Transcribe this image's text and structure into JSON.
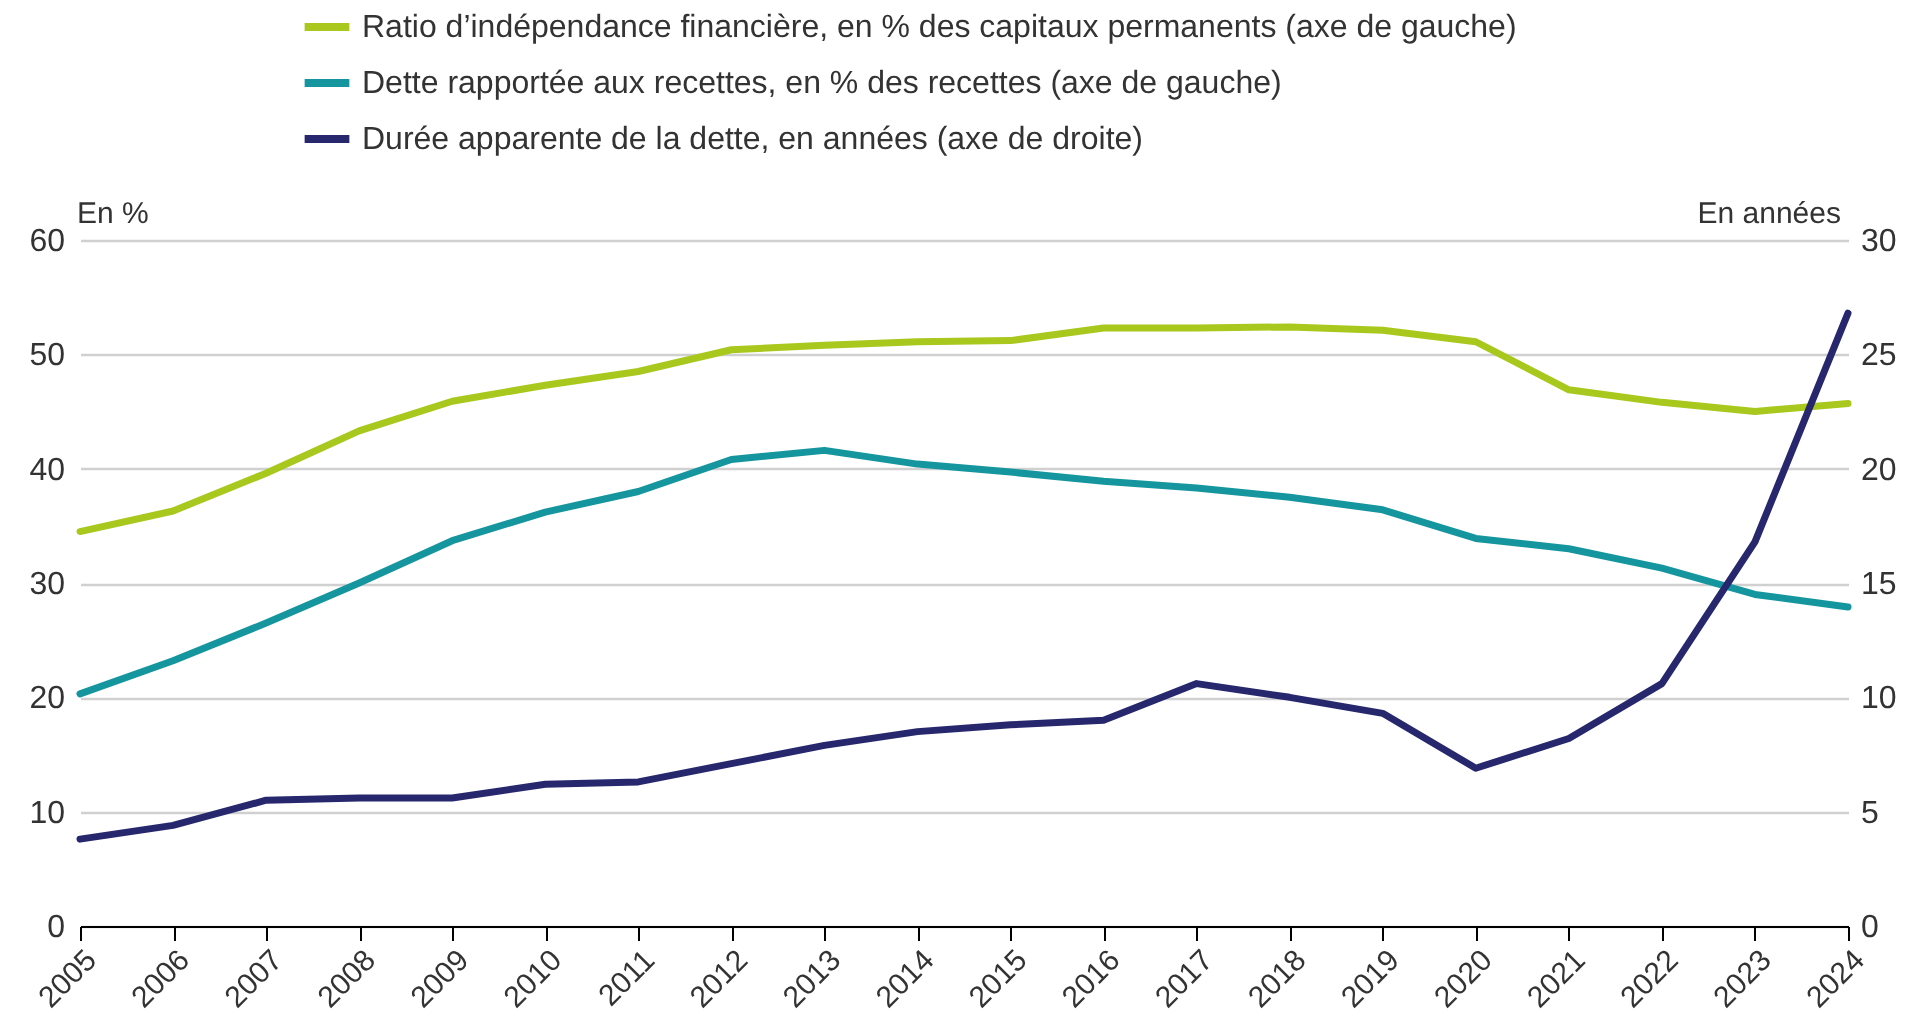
{
  "chart_data": {
    "type": "line",
    "categories": [
      "2005",
      "2006",
      "2007",
      "2008",
      "2009",
      "2010",
      "2011",
      "2012",
      "2013",
      "2014",
      "2015",
      "2016",
      "2017",
      "2018",
      "2019",
      "2020",
      "2021",
      "2022",
      "2023",
      "2024"
    ],
    "series": [
      {
        "name": "Ratio d’indépendance financière, en % des capitaux permanents (axe de gauche)",
        "color": "#a8c81e",
        "axis": "y",
        "values": [
          34.5,
          36.3,
          39.6,
          43.3,
          45.9,
          47.3,
          48.5,
          50.4,
          50.8,
          51.1,
          51.2,
          52.3,
          52.3,
          52.4,
          52.1,
          51.1,
          46.9,
          45.8,
          45.0,
          45.7
        ]
      },
      {
        "name": "Dette rapportée aux recettes, en % des recettes (axe de gauche)",
        "color": "#15969e",
        "axis": "y",
        "values": [
          20.3,
          23.2,
          26.5,
          30.0,
          33.7,
          36.2,
          38.0,
          40.8,
          41.6,
          40.4,
          39.7,
          38.9,
          38.3,
          37.5,
          36.4,
          33.9,
          33.0,
          31.3,
          29.0,
          27.9
        ]
      },
      {
        "name": "Durée apparente de la dette, en années (axe de droite)",
        "color": "#27276e",
        "axis": "y2",
        "values": [
          3.8,
          4.4,
          5.5,
          5.6,
          5.6,
          6.2,
          6.3,
          7.1,
          7.9,
          8.5,
          8.8,
          9.0,
          10.6,
          10.0,
          9.3,
          6.9,
          8.2,
          10.6,
          16.8,
          26.8
        ]
      }
    ],
    "ylabel": "En %",
    "y2label": "En années",
    "ylim": [
      0,
      60
    ],
    "yticks": [
      0,
      10,
      20,
      30,
      40,
      50,
      60
    ],
    "y2lim": [
      0,
      30
    ],
    "y2ticks": [
      0,
      5,
      10,
      15,
      20,
      25,
      30
    ],
    "grid": "y",
    "legend": "top"
  }
}
